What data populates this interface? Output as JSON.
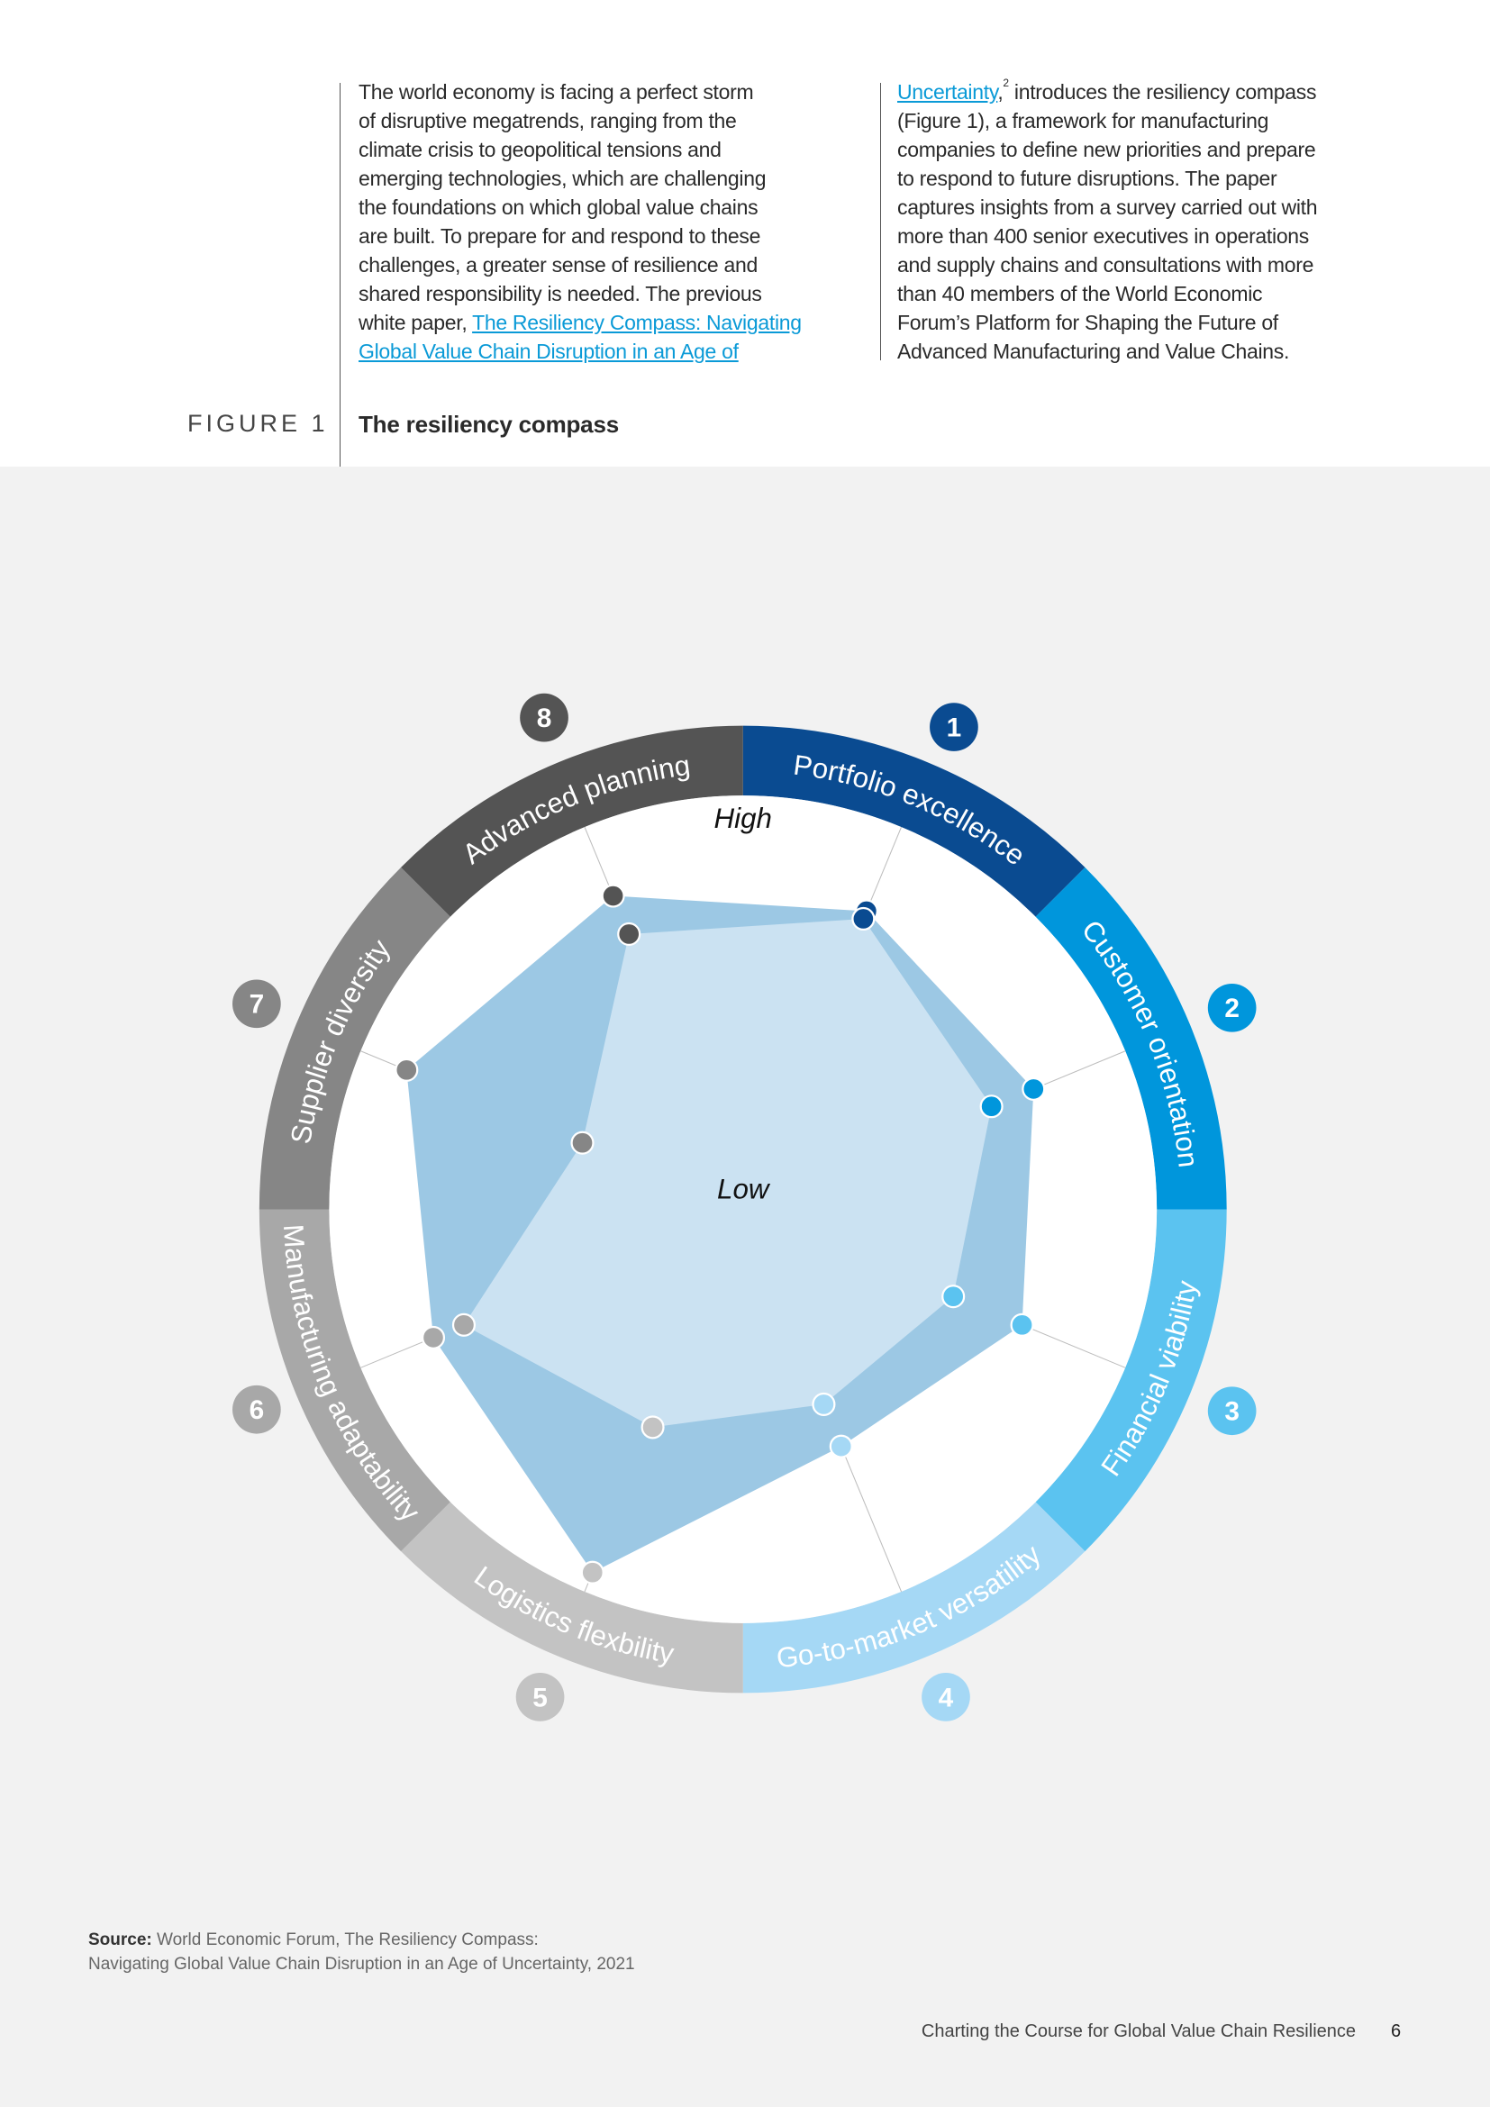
{
  "body": {
    "col1_lines": [
      "The world economy is facing a perfect storm",
      "of disruptive megatrends, ranging from the",
      "climate crisis to geopolitical tensions and",
      "emerging technologies, which are challenging",
      "the foundations on which global value chains",
      "are built. To prepare for and respond to these",
      "challenges, a greater sense of resilience and",
      "shared responsibility is needed. The previous"
    ],
    "col1_line9_text": "white paper, ",
    "col1_line9_link": "The Resiliency Compass: Navigating ",
    "col1_line10_link": "Global Value Chain Disruption in an Age of ",
    "col2_line1_link": "Uncertainty",
    "col2_line1_comma": ",",
    "col2_line1_sup": "2",
    "col2_line1_text": " introduces the resiliency compass",
    "col2_lines": [
      "(Figure 1), a framework for manufacturing",
      "companies to define new priorities and prepare",
      "to respond to future disruptions. The paper",
      "captures insights from a survey carried out with",
      "more than 400 senior executives in operations",
      "and supply chains and consultations with more",
      "than 40 members of the World Economic",
      "Forum’s Platform for Shaping the Future of",
      "Advanced Manufacturing and Value Chains."
    ]
  },
  "figure": {
    "label": "FIGURE 1",
    "title": "The resiliency compass"
  },
  "chart_data": {
    "type": "radar",
    "title": "The resiliency compass",
    "scale_labels": {
      "high": "High",
      "low": "Low"
    },
    "range": [
      0,
      1
    ],
    "axes": [
      {
        "num": "1",
        "label": "Portfolio excellence",
        "color": "#0a4b91"
      },
      {
        "num": "2",
        "label": "Customer orientation",
        "color": "#0096dc"
      },
      {
        "num": "3",
        "label": "Financial viability",
        "color": "#5bc3f0"
      },
      {
        "num": "4",
        "label": "Go-to-market versatility",
        "color": "#a5d8f5"
      },
      {
        "num": "5",
        "label": "Logistics flexbility",
        "color": "#c3c3c3"
      },
      {
        "num": "6",
        "label": "Manufacturing adaptability",
        "color": "#a8a8a8"
      },
      {
        "num": "7",
        "label": "Supplier diversity",
        "color": "#868686"
      },
      {
        "num": "8",
        "label": "Advanced planning",
        "color": "#545454"
      }
    ],
    "series": [
      {
        "name": "outer",
        "fill": "#9cc8e4",
        "values": [
          0.78,
          0.76,
          0.73,
          0.62,
          0.95,
          0.81,
          0.88,
          0.82
        ]
      },
      {
        "name": "inner",
        "fill": "#cbe2f2",
        "values": [
          0.76,
          0.65,
          0.55,
          0.51,
          0.57,
          0.73,
          0.42,
          0.72
        ]
      }
    ]
  },
  "source": {
    "label": "Source:",
    "line1": " World Economic Forum, The Resiliency Compass:",
    "line2": "Navigating Global Value Chain Disruption in an Age of Uncertainty, 2021"
  },
  "footer": {
    "title": "Charting the Course for Global Value Chain Resilience",
    "page": "6"
  }
}
